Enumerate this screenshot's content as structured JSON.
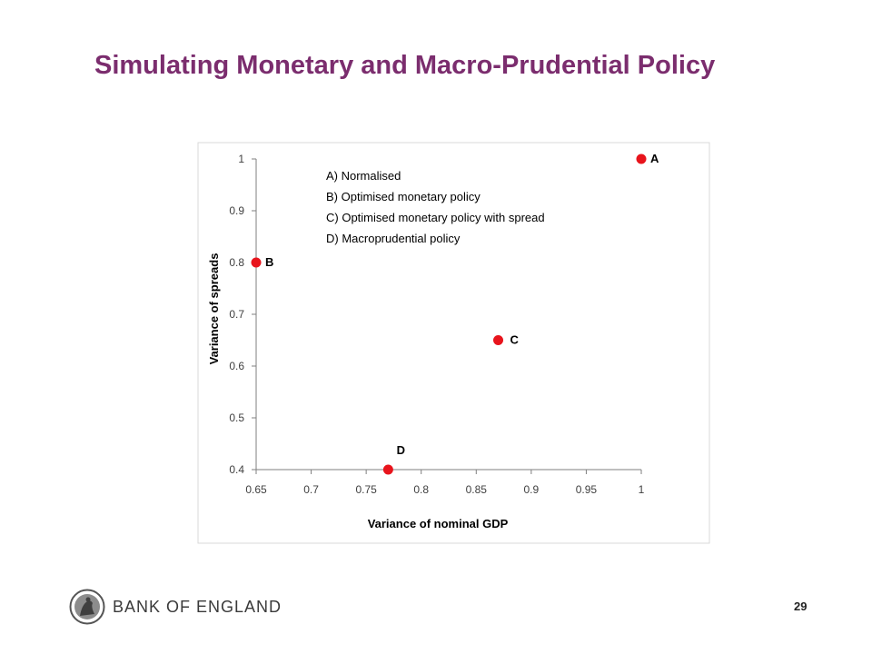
{
  "slide": {
    "title": "Simulating Monetary and Macro-Prudential Policy",
    "brand": "BANK OF ENGLAND",
    "page_number": "29"
  },
  "colors": {
    "title": "#7b2d6e",
    "point": "#e8141c",
    "axis": "#7f7f7f",
    "frame": "#d9d9d9"
  },
  "chart_data": {
    "type": "scatter",
    "title": "",
    "xlabel": "Variance of nominal GDP",
    "ylabel": "Variance of spreads",
    "xlim": [
      0.65,
      1
    ],
    "ylim": [
      0.4,
      1
    ],
    "xticks": [
      "0.65",
      "0.7",
      "0.75",
      "0.8",
      "0.85",
      "0.9",
      "0.95",
      "1"
    ],
    "yticks": [
      "0.4",
      "0.5",
      "0.6",
      "0.7",
      "0.8",
      "0.9",
      "1"
    ],
    "grid": false,
    "points": [
      {
        "label": "A",
        "x": 1.0,
        "y": 1.0
      },
      {
        "label": "B",
        "x": 0.65,
        "y": 0.8
      },
      {
        "label": "C",
        "x": 0.87,
        "y": 0.65
      },
      {
        "label": "D",
        "x": 0.77,
        "y": 0.4
      }
    ],
    "annotations": [
      "A) Normalised",
      "B) Optimised monetary policy",
      "C) Optimised monetary policy with spread",
      "D) Macroprudential policy"
    ]
  }
}
